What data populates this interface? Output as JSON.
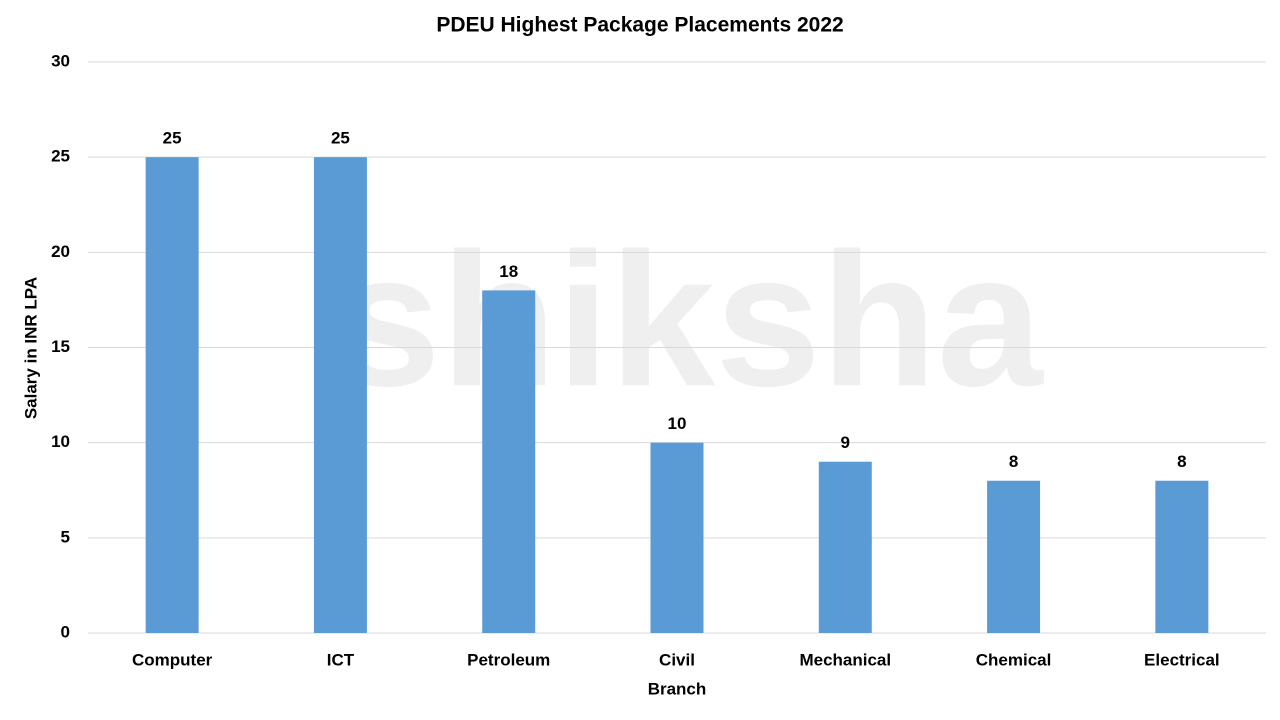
{
  "chart_data": {
    "type": "bar",
    "title": "PDEU Highest Package Placements 2022",
    "x_label": "Branch",
    "y_label": "Salary in INR LPA",
    "watermark": "shiksha",
    "categories": [
      "Computer",
      "ICT",
      "Petroleum",
      "Civil",
      "Mechanical",
      "Chemical",
      "Electrical"
    ],
    "values": [
      25,
      25,
      18,
      10,
      9,
      8,
      8
    ],
    "color": "#5b9bd5",
    "ylim": [
      0,
      30
    ],
    "yticks": [
      0,
      5,
      10,
      15,
      20,
      25,
      30
    ],
    "grid": true,
    "data_labels": true
  }
}
